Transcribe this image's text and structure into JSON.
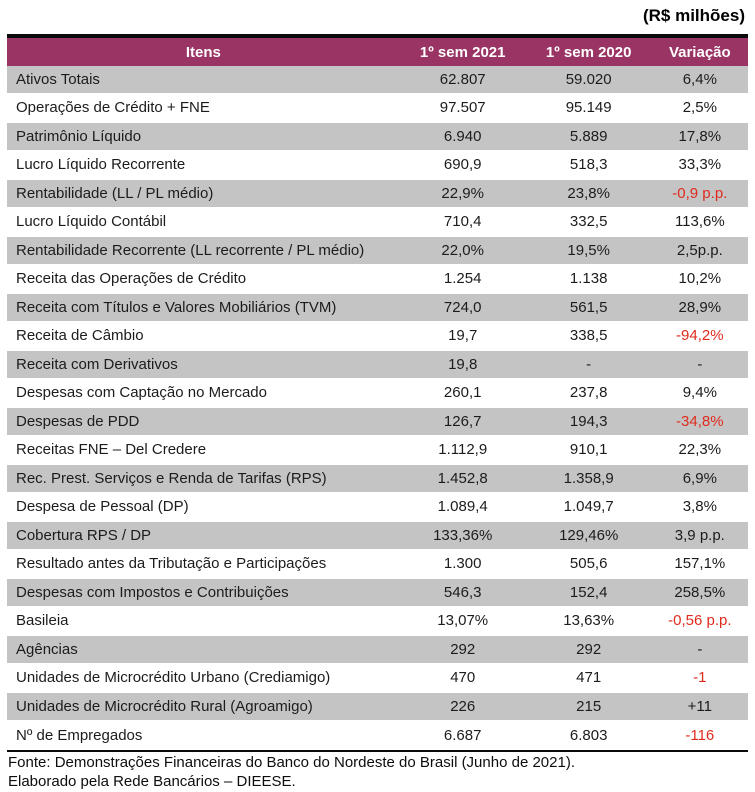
{
  "units_note": "(R$ milhões)",
  "colors": {
    "header_bg": "#9A3464",
    "row_alt_bg": "#C4C4C4",
    "row_bg": "#FFFFFF",
    "negative_text": "#DF2B1E",
    "border_black": "#0A0A0A"
  },
  "table": {
    "columns": [
      "Itens",
      "1º sem 2021",
      "1º sem 2020",
      "Variação"
    ],
    "rows": [
      {
        "item": "Ativos Totais",
        "sem2021": "62.807",
        "sem2020": "59.020",
        "variacao": "6,4%",
        "variacao_negative": false
      },
      {
        "item": "Operações de Crédito + FNE",
        "sem2021": "97.507",
        "sem2020": "95.149",
        "variacao": "2,5%",
        "variacao_negative": false
      },
      {
        "item": "Patrimônio Líquido",
        "sem2021": "6.940",
        "sem2020": "5.889",
        "variacao": "17,8%",
        "variacao_negative": false
      },
      {
        "item": "Lucro Líquido Recorrente",
        "sem2021": "690,9",
        "sem2020": "518,3",
        "variacao": "33,3%",
        "variacao_negative": false
      },
      {
        "item": "Rentabilidade (LL / PL médio)",
        "sem2021": "22,9%",
        "sem2020": "23,8%",
        "variacao": "-0,9 p.p.",
        "variacao_negative": true
      },
      {
        "item": "Lucro Líquido Contábil",
        "sem2021": "710,4",
        "sem2020": "332,5",
        "variacao": "113,6%",
        "variacao_negative": false
      },
      {
        "item": "Rentabilidade Recorrente (LL recorrente / PL médio)",
        "sem2021": "22,0%",
        "sem2020": "19,5%",
        "variacao": "2,5p.p.",
        "variacao_negative": false
      },
      {
        "item": "Receita das Operações de Crédito",
        "sem2021": "1.254",
        "sem2020": "1.138",
        "variacao": "10,2%",
        "variacao_negative": false
      },
      {
        "item": "Receita com Títulos e Valores Mobiliários (TVM)",
        "sem2021": "724,0",
        "sem2020": "561,5",
        "variacao": "28,9%",
        "variacao_negative": false
      },
      {
        "item": "Receita de Câmbio",
        "sem2021": "19,7",
        "sem2020": "338,5",
        "variacao": "-94,2%",
        "variacao_negative": true
      },
      {
        "item": "Receita com Derivativos",
        "sem2021": "19,8",
        "sem2020": "-",
        "variacao": "-",
        "variacao_negative": false
      },
      {
        "item": "Despesas com Captação no Mercado",
        "sem2021": "260,1",
        "sem2020": "237,8",
        "variacao": "9,4%",
        "variacao_negative": false
      },
      {
        "item": "Despesas de PDD",
        "sem2021": "126,7",
        "sem2020": "194,3",
        "variacao": "-34,8%",
        "variacao_negative": true
      },
      {
        "item": "Receitas FNE – Del Credere",
        "sem2021": "1.112,9",
        "sem2020": "910,1",
        "variacao": "22,3%",
        "variacao_negative": false
      },
      {
        "item": "Rec. Prest. Serviços e Renda de Tarifas (RPS)",
        "sem2021": "1.452,8",
        "sem2020": "1.358,9",
        "variacao": "6,9%",
        "variacao_negative": false
      },
      {
        "item": "Despesa de Pessoal (DP)",
        "sem2021": "1.089,4",
        "sem2020": "1.049,7",
        "variacao": "3,8%",
        "variacao_negative": false
      },
      {
        "item": "Cobertura RPS / DP",
        "sem2021": "133,36%",
        "sem2020": "129,46%",
        "variacao": "3,9 p.p.",
        "variacao_negative": false
      },
      {
        "item": "Resultado antes da Tributação e Participações",
        "sem2021": "1.300",
        "sem2020": "505,6",
        "variacao": "157,1%",
        "variacao_negative": false
      },
      {
        "item": "Despesas com Impostos e Contribuições",
        "sem2021": "546,3",
        "sem2020": "152,4",
        "variacao": "258,5%",
        "variacao_negative": false
      },
      {
        "item": "Basileia",
        "sem2021": "13,07%",
        "sem2020": "13,63%",
        "variacao": "-0,56 p.p.",
        "variacao_negative": true
      },
      {
        "item": "Agências",
        "sem2021": "292",
        "sem2020": "292",
        "variacao": "-",
        "variacao_negative": false
      },
      {
        "item": "Unidades de Microcrédito Urbano (Crediamigo)",
        "sem2021": "470",
        "sem2020": "471",
        "variacao": "-1",
        "variacao_negative": true
      },
      {
        "item": "Unidades de Microcrédito Rural (Agroamigo)",
        "sem2021": "226",
        "sem2020": "215",
        "variacao": "+11",
        "variacao_negative": false
      },
      {
        "item": "Nº de Empregados",
        "sem2021": "6.687",
        "sem2020": "6.803",
        "variacao": "-116",
        "variacao_negative": true
      }
    ]
  },
  "footer": {
    "line1": "Fonte: Demonstrações Financeiras do Banco do Nordeste do Brasil (Junho de 2021).",
    "line2": "Elaborado pela Rede Bancários – DIEESE."
  }
}
